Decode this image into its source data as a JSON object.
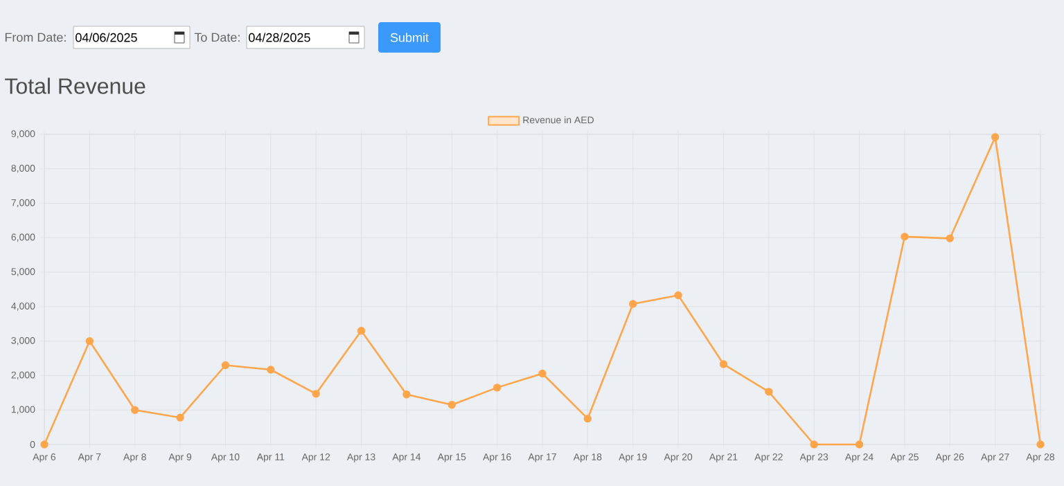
{
  "chart_data": {
    "type": "line",
    "title": "Total Revenue",
    "annotations": [
      "From Date:",
      "04/06/2025",
      "To Date:",
      "04/28/2025",
      "Submit"
    ],
    "categories": [
      "Apr 6",
      "Apr 7",
      "Apr 8",
      "Apr 9",
      "Apr 10",
      "Apr 11",
      "Apr 12",
      "Apr 13",
      "Apr 14",
      "Apr 15",
      "Apr 16",
      "Apr 17",
      "Apr 18",
      "Apr 19",
      "Apr 20",
      "Apr 21",
      "Apr 22",
      "Apr 23",
      "Apr 24",
      "Apr 25",
      "Apr 26",
      "Apr 27",
      "Apr 28"
    ],
    "series": [
      {
        "name": "Revenue in AED",
        "color": "#ffa64d",
        "values": [
          0,
          3000,
          1000,
          780,
          2300,
          2170,
          1470,
          3300,
          1450,
          1150,
          1650,
          2060,
          750,
          4080,
          4330,
          2330,
          1530,
          0,
          0,
          6030,
          5980,
          8920,
          0
        ]
      }
    ],
    "ylim": [
      0,
      9000
    ],
    "yticks": [
      {
        "value": 0,
        "label": "0"
      },
      {
        "value": 1000,
        "label": "1,000"
      },
      {
        "value": 2000,
        "label": "2,000"
      },
      {
        "value": 3000,
        "label": "3,000"
      },
      {
        "value": 4000,
        "label": "4,000"
      },
      {
        "value": 5000,
        "label": "5,000"
      },
      {
        "value": 6000,
        "label": "6,000"
      },
      {
        "value": 7000,
        "label": "7,000"
      },
      {
        "value": 8000,
        "label": "8,000"
      },
      {
        "value": 9000,
        "label": "9,000"
      }
    ],
    "grid": true,
    "legend": "top",
    "marker": "circle",
    "line_style": "solid"
  }
}
